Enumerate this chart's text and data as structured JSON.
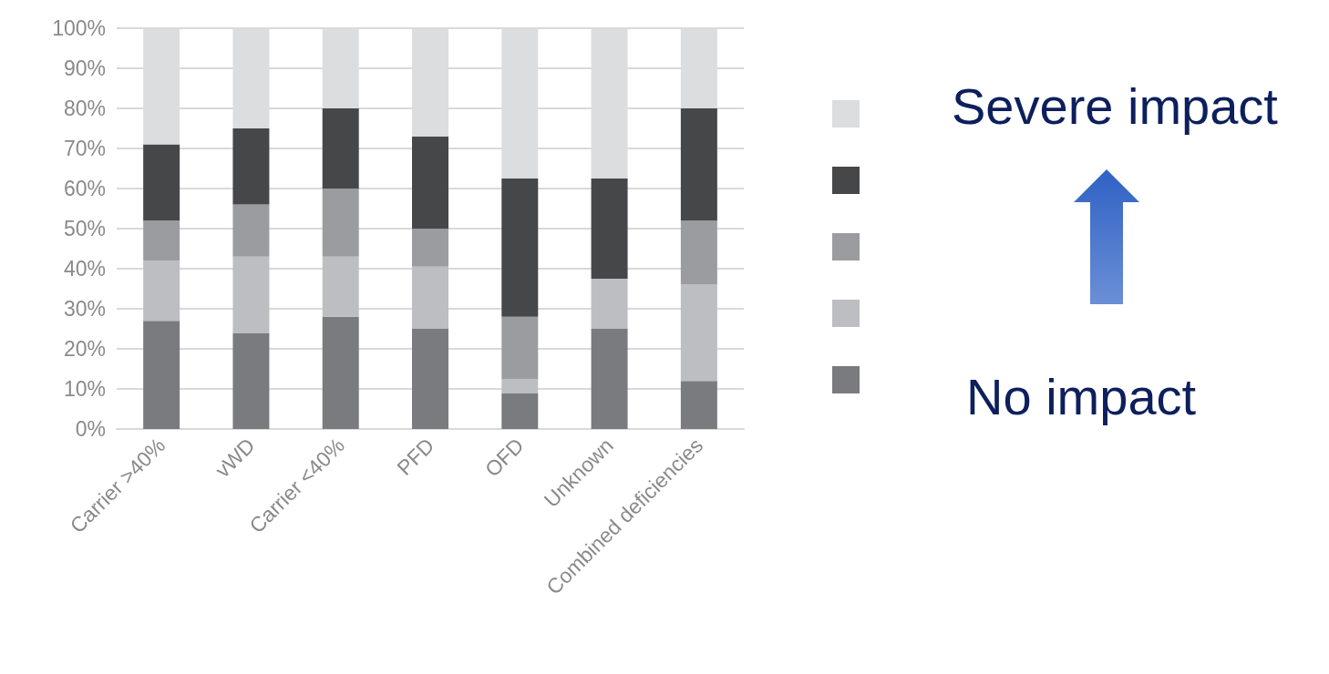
{
  "chart_data": {
    "type": "bar",
    "stacked": true,
    "categories": [
      "Carrier >40%",
      "vWD",
      "Carrier <40%",
      "PFD",
      "OFD",
      "Unknown",
      "Combined deficiencies"
    ],
    "series": [
      {
        "color": "#7a7b7f",
        "values": [
          27,
          24,
          28,
          25,
          9,
          25,
          12
        ]
      },
      {
        "color": "#bdbec2",
        "values": [
          15,
          19,
          15,
          15.5,
          3.5,
          12.5,
          24
        ]
      },
      {
        "color": "#9b9c9f",
        "values": [
          10,
          13,
          17,
          9.5,
          15.5,
          0,
          16
        ]
      },
      {
        "color": "#464749",
        "values": [
          19,
          19,
          20,
          23,
          34.5,
          25,
          28
        ]
      },
      {
        "color": "#dcdddf",
        "values": [
          29,
          25,
          20,
          27,
          37.5,
          37.5,
          20
        ]
      }
    ],
    "ylim": [
      0,
      100
    ],
    "yticks": [
      {
        "value": 0,
        "label": "0%"
      },
      {
        "value": 10,
        "label": "10%"
      },
      {
        "value": 20,
        "label": "20%"
      },
      {
        "value": 30,
        "label": "30%"
      },
      {
        "value": 40,
        "label": "40%"
      },
      {
        "value": 50,
        "label": "50%"
      },
      {
        "value": 60,
        "label": "60%"
      },
      {
        "value": 70,
        "label": "70%"
      },
      {
        "value": 80,
        "label": "80%"
      },
      {
        "value": 90,
        "label": "90%"
      },
      {
        "value": 100,
        "label": "100%"
      }
    ],
    "grid": "y",
    "annotations": [
      "Severe impact",
      "No impact"
    ]
  }
}
